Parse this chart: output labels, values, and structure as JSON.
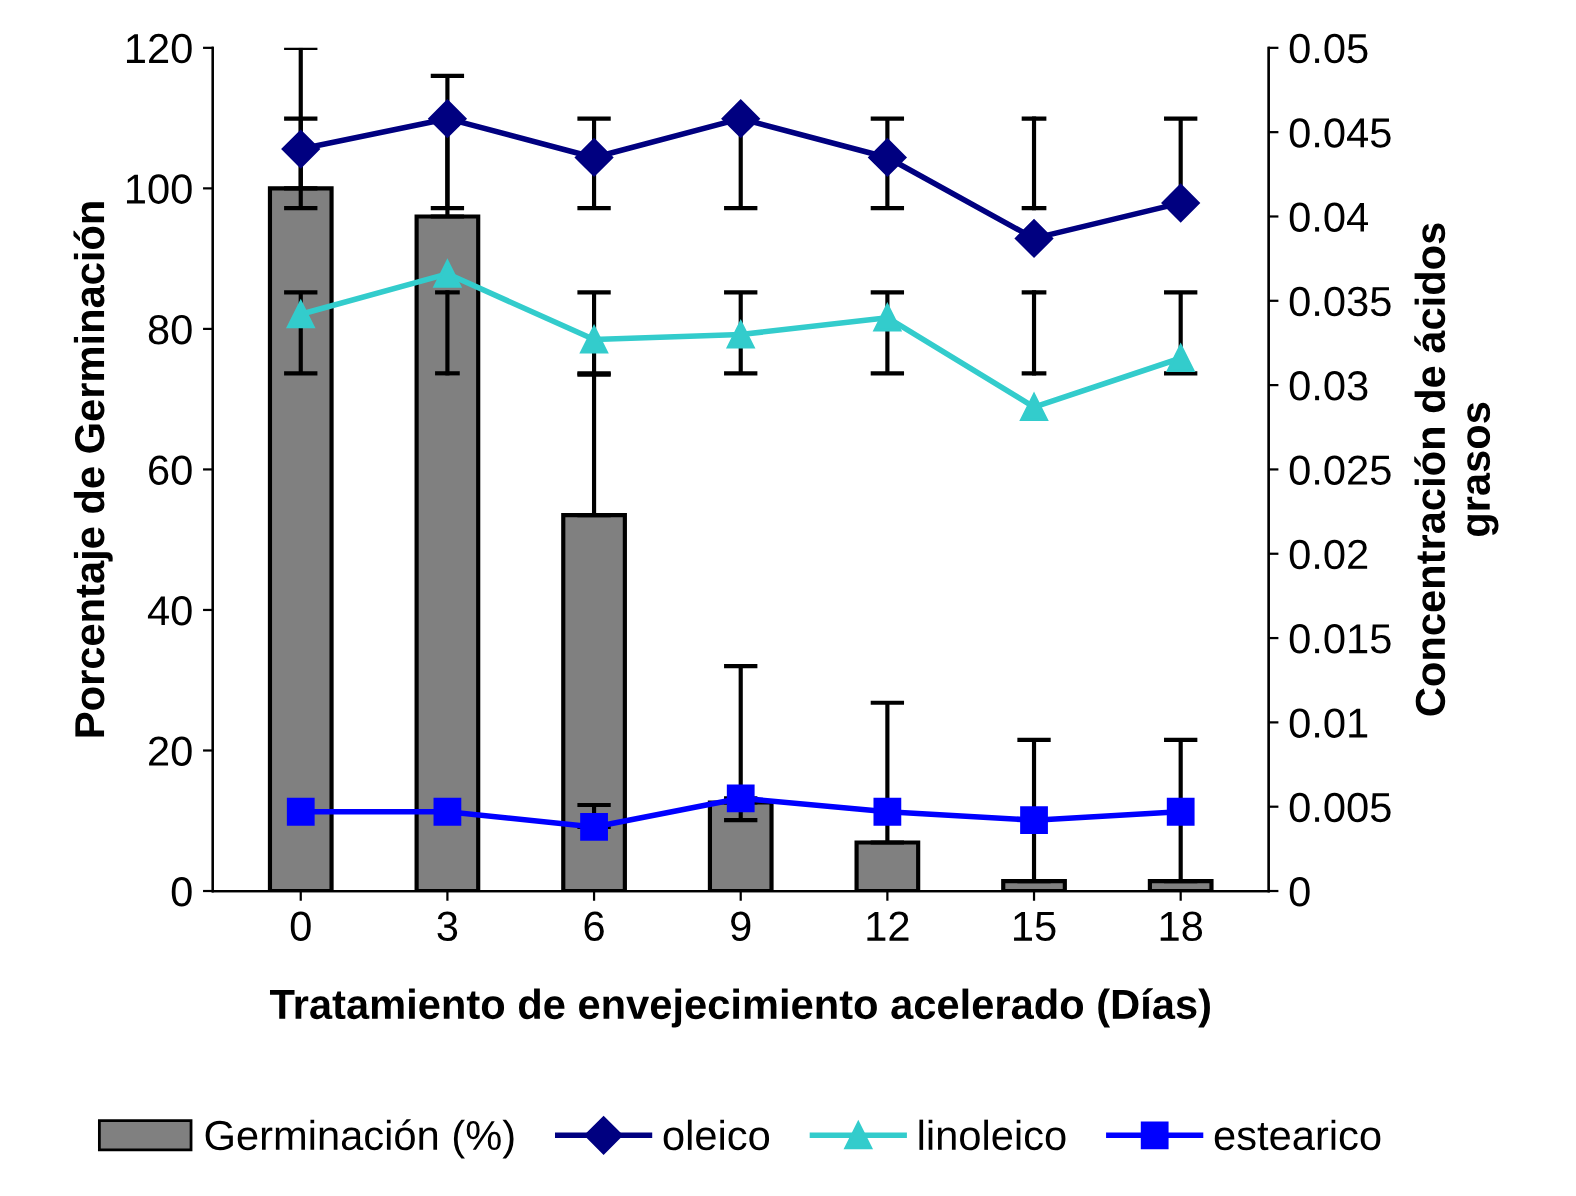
{
  "chart_data": {
    "type": "bar",
    "xlabel": "Tratamiento de envejecimiento acelerado (Días)",
    "ylabel": "Porcentaje de Germinación",
    "y2label": "Concentración de ácidos\ngrasos",
    "categories": [
      "0",
      "3",
      "6",
      "9",
      "12",
      "15",
      "18"
    ],
    "series": [
      {
        "name": "Germinación (%)",
        "color": "#808080",
        "values": [
          100,
          96,
          53.5,
          12.6,
          6.9,
          1.4,
          1.4
        ],
        "errors": [
          [
            100,
            120
          ],
          [
            96,
            116
          ],
          [
            53.5,
            73.5
          ],
          [
            12.6,
            32
          ],
          [
            6.9,
            26.8
          ],
          [
            1.4,
            21.5
          ],
          [
            1.4,
            21.5
          ]
        ]
      },
      {
        "name": "oleico",
        "type": "line",
        "axis": "y2",
        "color": "#000080",
        "marker": "diamond",
        "values": [
          0.044,
          0.0458,
          0.0435,
          0.0458,
          0.0435,
          0.0387,
          0.0408
        ],
        "errors": [
          [
            0.0405,
            0.0458
          ],
          [
            0.0405,
            0.0458
          ],
          [
            0.0405,
            0.0458
          ],
          [
            0.0405,
            0.0458
          ],
          [
            0.0405,
            0.0458
          ],
          [
            0.0405,
            0.0458
          ],
          [
            0.0408,
            0.0458
          ]
        ]
      },
      {
        "name": "linoleico",
        "type": "line",
        "axis": "y2",
        "color": "#33cccc",
        "marker": "triangle",
        "values": [
          0.0342,
          0.0366,
          0.0327,
          0.033,
          0.034,
          0.0287,
          0.0316
        ],
        "errors": [
          [
            0.0307,
            0.0355
          ],
          [
            0.0307,
            0.0355
          ],
          [
            0.0307,
            0.0355
          ],
          [
            0.0307,
            0.0355
          ],
          [
            0.0307,
            0.0355
          ],
          [
            0.0307,
            0.0355
          ],
          [
            0.0307,
            0.0355
          ]
        ]
      },
      {
        "name": "estearico",
        "type": "line",
        "axis": "y2",
        "color": "#0000ff",
        "marker": "square",
        "values": [
          0.0047,
          0.0047,
          0.0038,
          0.0055,
          0.0047,
          0.0042,
          0.0047
        ],
        "errors": [
          null,
          null,
          [
            0.0038,
            0.0051
          ],
          [
            0.0042,
            0.0055
          ],
          null,
          null,
          null
        ]
      }
    ],
    "ylim": [
      0,
      120
    ],
    "yticks": [
      0,
      20,
      40,
      60,
      80,
      100,
      120
    ],
    "y2lim": [
      0,
      0.05
    ],
    "y2ticks": [
      {
        "value": 0,
        "label": "0"
      },
      {
        "value": 0.005,
        "label": "0.005"
      },
      {
        "value": 0.01,
        "label": "0.01"
      },
      {
        "value": 0.015,
        "label": "0.015"
      },
      {
        "value": 0.02,
        "label": "0.02"
      },
      {
        "value": 0.025,
        "label": "0.025"
      },
      {
        "value": 0.03,
        "label": "0.03"
      },
      {
        "value": 0.035,
        "label": "0.035"
      },
      {
        "value": 0.04,
        "label": "0.04"
      },
      {
        "value": 0.045,
        "label": "0.045"
      },
      {
        "value": 0.05,
        "label": "0.05"
      }
    ],
    "legend": "bottom",
    "grid": false
  }
}
